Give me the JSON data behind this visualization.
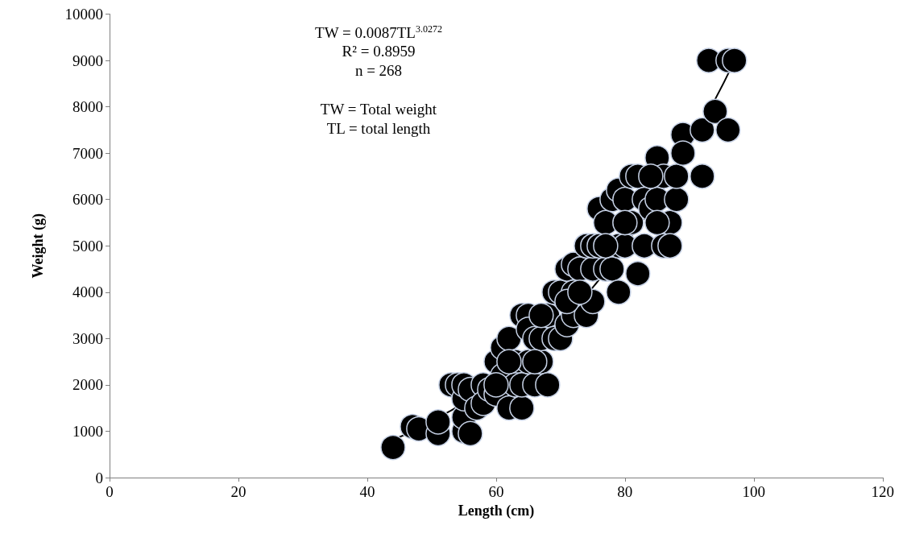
{
  "chart_data": {
    "type": "scatter",
    "xlabel": "Length (cm)",
    "ylabel": "Weight (g)",
    "annotations": [
      "TW = 0.0087TL$^{3.0272}$",
      "R² = 0.8959",
      "n = 268",
      "TW = Total weight",
      "TL = total length"
    ],
    "xlim": [
      0,
      120
    ],
    "xticks": [
      0,
      20,
      40,
      60,
      80,
      100,
      120
    ],
    "ylim": [
      0,
      10000
    ],
    "yticks": [
      0,
      1000,
      2000,
      3000,
      4000,
      5000,
      6000,
      7000,
      8000,
      9000,
      10000
    ],
    "grid": false,
    "marker": "circle",
    "series": [
      {
        "color": "#000000",
        "x": [
          44,
          47,
          48,
          51,
          51,
          53,
          54,
          55,
          55,
          55,
          55,
          56,
          56,
          57,
          58,
          58,
          59,
          60,
          60,
          61,
          61,
          62,
          62,
          63,
          63,
          64,
          64,
          64,
          65,
          65,
          65,
          66,
          66,
          67,
          67,
          68,
          68,
          69,
          69,
          70,
          70,
          71,
          71,
          72,
          72,
          72,
          73,
          74,
          74,
          75,
          75,
          75,
          76,
          76,
          77,
          77,
          78,
          78,
          79,
          79,
          79,
          80,
          80,
          81,
          81,
          82,
          82,
          83,
          83,
          84,
          85,
          85,
          86,
          86,
          87,
          87,
          88,
          88,
          89,
          89,
          92,
          92,
          93,
          94,
          96,
          96,
          97,
          85,
          67,
          71,
          73,
          60,
          62,
          66,
          77,
          80,
          84
        ],
        "values": [
          650,
          1100,
          1050,
          950,
          1200,
          2000,
          2000,
          1000,
          1300,
          1700,
          2000,
          950,
          1900,
          1500,
          2000,
          1600,
          1900,
          1800,
          2500,
          2800,
          2200,
          3000,
          1500,
          2500,
          2000,
          1500,
          3500,
          2000,
          3500,
          2500,
          3200,
          2000,
          3000,
          2500,
          3000,
          2000,
          3500,
          3000,
          4000,
          3000,
          4000,
          4500,
          3300,
          4000,
          4600,
          3500,
          4500,
          5000,
          3500,
          3800,
          4500,
          5000,
          5800,
          5000,
          5500,
          4500,
          6000,
          4500,
          6200,
          5000,
          4000,
          6000,
          5000,
          5500,
          6500,
          4400,
          6500,
          5000,
          6000,
          5800,
          6900,
          6000,
          5000,
          6500,
          5500,
          5000,
          6000,
          6500,
          7400,
          7000,
          7500,
          6500,
          9000,
          7900,
          7500,
          9000,
          9000,
          5500,
          3500,
          3800,
          4000,
          2000,
          2500,
          2500,
          5000,
          5500,
          6500
        ]
      },
      {
        "type": "line",
        "color": "#000000",
        "marker": "none",
        "line_style": "solid",
        "x": [
          44,
          50,
          60,
          70,
          80,
          90,
          97
        ],
        "values": [
          820,
          1210,
          2100,
          3350,
          5020,
          7170,
          8990
        ]
      }
    ]
  }
}
